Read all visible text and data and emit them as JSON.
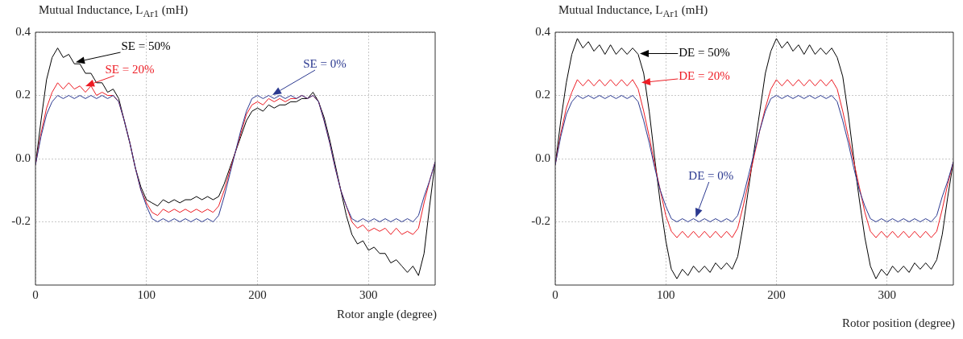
{
  "chart_data": [
    {
      "type": "line",
      "ylabel": "Mutual Inductance, L$_{Ar1}$ (mH)",
      "xlabel": "Rotor angle (degree)",
      "annotations": [
        "SE = 0%",
        {
          "text": "SE = 20%",
          "x": 45,
          "y": 0.23
        },
        "SE = 50%"
      ],
      "xlim": [
        0,
        360
      ],
      "ylim": [
        -0.4,
        0.4
      ],
      "xticks": [
        0,
        100,
        200,
        300
      ],
      "yticks": [
        0.4,
        0.2,
        {
          "value": 0,
          "label": "0.0"
        },
        -0.2
      ],
      "grid": true,
      "x": [
        0,
        5,
        10,
        15,
        20,
        25,
        30,
        35,
        40,
        45,
        50,
        55,
        60,
        65,
        70,
        75,
        80,
        85,
        90,
        95,
        100,
        105,
        110,
        115,
        120,
        125,
        130,
        135,
        140,
        145,
        150,
        155,
        160,
        165,
        170,
        175,
        180,
        185,
        190,
        195,
        200,
        205,
        210,
        215,
        220,
        225,
        230,
        235,
        240,
        245,
        250,
        255,
        260,
        265,
        270,
        275,
        280,
        285,
        290,
        295,
        300,
        305,
        310,
        315,
        320,
        325,
        330,
        335,
        340,
        345,
        350,
        355,
        360
      ],
      "series": [
        {
          "color": "#2b3990",
          "values": [
            -0.02,
            0.07,
            0.14,
            0.18,
            0.2,
            0.19,
            0.2,
            0.19,
            0.2,
            0.19,
            0.2,
            0.19,
            0.2,
            0.19,
            0.2,
            0.18,
            0.12,
            0.05,
            -0.03,
            -0.1,
            -0.15,
            -0.19,
            -0.2,
            -0.19,
            -0.2,
            -0.19,
            -0.2,
            -0.19,
            -0.2,
            -0.19,
            -0.2,
            -0.19,
            -0.2,
            -0.18,
            -0.12,
            -0.05,
            0.02,
            0.09,
            0.15,
            0.19,
            0.2,
            0.19,
            0.2,
            0.19,
            0.2,
            0.19,
            0.2,
            0.19,
            0.2,
            0.19,
            0.2,
            0.18,
            0.12,
            0.05,
            -0.03,
            -0.1,
            -0.15,
            -0.19,
            -0.2,
            -0.19,
            -0.2,
            -0.19,
            -0.2,
            -0.19,
            -0.2,
            -0.19,
            -0.2,
            -0.19,
            -0.2,
            -0.18,
            -0.12,
            -0.07,
            -0.01
          ]
        },
        {
          "color": "#ed1c24",
          "values": [
            -0.02,
            0.08,
            0.16,
            0.21,
            0.24,
            0.22,
            0.24,
            0.22,
            0.23,
            0.21,
            0.23,
            0.2,
            0.21,
            0.2,
            0.2,
            0.18,
            0.12,
            0.05,
            -0.03,
            -0.1,
            -0.14,
            -0.17,
            -0.18,
            -0.16,
            -0.17,
            -0.16,
            -0.17,
            -0.16,
            -0.17,
            -0.16,
            -0.17,
            -0.16,
            -0.17,
            -0.15,
            -0.1,
            -0.04,
            0.02,
            0.08,
            0.14,
            0.17,
            0.18,
            0.17,
            0.19,
            0.18,
            0.19,
            0.18,
            0.19,
            0.19,
            0.2,
            0.19,
            0.2,
            0.18,
            0.12,
            0.05,
            -0.03,
            -0.1,
            -0.15,
            -0.2,
            -0.22,
            -0.21,
            -0.23,
            -0.22,
            -0.23,
            -0.22,
            -0.24,
            -0.22,
            -0.24,
            -0.23,
            -0.24,
            -0.22,
            -0.14,
            -0.07,
            -0.01
          ]
        },
        {
          "color": "#000000",
          "values": [
            -0.02,
            0.12,
            0.25,
            0.32,
            0.35,
            0.32,
            0.33,
            0.3,
            0.3,
            0.27,
            0.27,
            0.24,
            0.24,
            0.21,
            0.22,
            0.19,
            0.12,
            0.05,
            -0.03,
            -0.09,
            -0.13,
            -0.14,
            -0.15,
            -0.13,
            -0.14,
            -0.13,
            -0.14,
            -0.13,
            -0.13,
            -0.12,
            -0.13,
            -0.12,
            -0.13,
            -0.12,
            -0.08,
            -0.03,
            0.02,
            0.07,
            0.12,
            0.15,
            0.16,
            0.15,
            0.17,
            0.16,
            0.17,
            0.17,
            0.18,
            0.18,
            0.19,
            0.19,
            0.21,
            0.18,
            0.13,
            0.06,
            -0.02,
            -0.1,
            -0.18,
            -0.24,
            -0.27,
            -0.26,
            -0.29,
            -0.28,
            -0.3,
            -0.3,
            -0.33,
            -0.32,
            -0.34,
            -0.36,
            -0.34,
            -0.37,
            -0.3,
            -0.15,
            -0.01
          ]
        }
      ]
    },
    {
      "type": "line",
      "ylabel": "Mutual Inductance, L$_{Ar1}$ (mH)",
      "xlabel": "Rotor position (degree)",
      "annotations": [
        {
          "text": "DE = 0%",
          "x": 127,
          "y": -0.185
        },
        "DE = 20%",
        "DE = 50%"
      ],
      "xlim": [
        0,
        360
      ],
      "ylim": [
        -0.4,
        0.4
      ],
      "xticks": [
        0,
        100,
        200,
        300
      ],
      "yticks": [
        0.4,
        0.2,
        {
          "value": 0,
          "label": "0.0"
        },
        -0.2
      ],
      "grid": true,
      "x": [
        0,
        5,
        10,
        15,
        20,
        25,
        30,
        35,
        40,
        45,
        50,
        55,
        60,
        65,
        70,
        75,
        80,
        85,
        90,
        95,
        100,
        105,
        110,
        115,
        120,
        125,
        130,
        135,
        140,
        145,
        150,
        155,
        160,
        165,
        170,
        175,
        180,
        185,
        190,
        195,
        200,
        205,
        210,
        215,
        220,
        225,
        230,
        235,
        240,
        245,
        250,
        255,
        260,
        265,
        270,
        275,
        280,
        285,
        290,
        295,
        300,
        305,
        310,
        315,
        320,
        325,
        330,
        335,
        340,
        345,
        350,
        355,
        360
      ],
      "series": [
        {
          "color": "#2b3990",
          "values": [
            -0.02,
            0.07,
            0.14,
            0.18,
            0.2,
            0.19,
            0.2,
            0.19,
            0.2,
            0.19,
            0.2,
            0.19,
            0.2,
            0.19,
            0.2,
            0.18,
            0.12,
            0.05,
            -0.03,
            -0.1,
            -0.15,
            -0.19,
            -0.2,
            -0.19,
            -0.2,
            -0.19,
            -0.2,
            -0.19,
            -0.2,
            -0.19,
            -0.2,
            -0.19,
            -0.2,
            -0.18,
            -0.12,
            -0.05,
            0.02,
            0.09,
            0.15,
            0.19,
            0.2,
            0.19,
            0.2,
            0.19,
            0.2,
            0.19,
            0.2,
            0.19,
            0.2,
            0.19,
            0.2,
            0.18,
            0.12,
            0.05,
            -0.03,
            -0.1,
            -0.15,
            -0.19,
            -0.2,
            -0.19,
            -0.2,
            -0.19,
            -0.2,
            -0.19,
            -0.2,
            -0.19,
            -0.2,
            -0.19,
            -0.2,
            -0.18,
            -0.12,
            -0.07,
            -0.01
          ]
        },
        {
          "color": "#ed1c24",
          "values": [
            -0.02,
            0.08,
            0.16,
            0.21,
            0.25,
            0.23,
            0.25,
            0.23,
            0.25,
            0.23,
            0.25,
            0.23,
            0.25,
            0.23,
            0.25,
            0.22,
            0.15,
            0.07,
            -0.02,
            -0.1,
            -0.18,
            -0.23,
            -0.25,
            -0.23,
            -0.25,
            -0.23,
            -0.25,
            -0.23,
            -0.25,
            -0.23,
            -0.25,
            -0.23,
            -0.25,
            -0.22,
            -0.15,
            -0.07,
            0.01,
            0.09,
            0.16,
            0.22,
            0.25,
            0.23,
            0.25,
            0.23,
            0.25,
            0.23,
            0.25,
            0.23,
            0.25,
            0.23,
            0.25,
            0.22,
            0.15,
            0.07,
            -0.01,
            -0.09,
            -0.17,
            -0.23,
            -0.25,
            -0.23,
            -0.25,
            -0.23,
            -0.25,
            -0.23,
            -0.25,
            -0.23,
            -0.25,
            -0.23,
            -0.25,
            -0.23,
            -0.16,
            -0.08,
            -0.01
          ]
        },
        {
          "color": "#000000",
          "values": [
            -0.02,
            0.12,
            0.24,
            0.33,
            0.38,
            0.35,
            0.37,
            0.34,
            0.36,
            0.33,
            0.36,
            0.33,
            0.35,
            0.33,
            0.35,
            0.33,
            0.27,
            0.15,
            0.0,
            -0.14,
            -0.26,
            -0.35,
            -0.38,
            -0.35,
            -0.37,
            -0.34,
            -0.36,
            -0.34,
            -0.36,
            -0.33,
            -0.35,
            -0.33,
            -0.35,
            -0.31,
            -0.21,
            -0.09,
            0.03,
            0.15,
            0.27,
            0.34,
            0.38,
            0.35,
            0.37,
            0.34,
            0.36,
            0.33,
            0.36,
            0.33,
            0.35,
            0.33,
            0.35,
            0.32,
            0.26,
            0.14,
            0.0,
            -0.13,
            -0.25,
            -0.34,
            -0.38,
            -0.35,
            -0.37,
            -0.34,
            -0.36,
            -0.34,
            -0.36,
            -0.33,
            -0.35,
            -0.33,
            -0.35,
            -0.32,
            -0.24,
            -0.12,
            -0.01
          ]
        }
      ]
    }
  ]
}
